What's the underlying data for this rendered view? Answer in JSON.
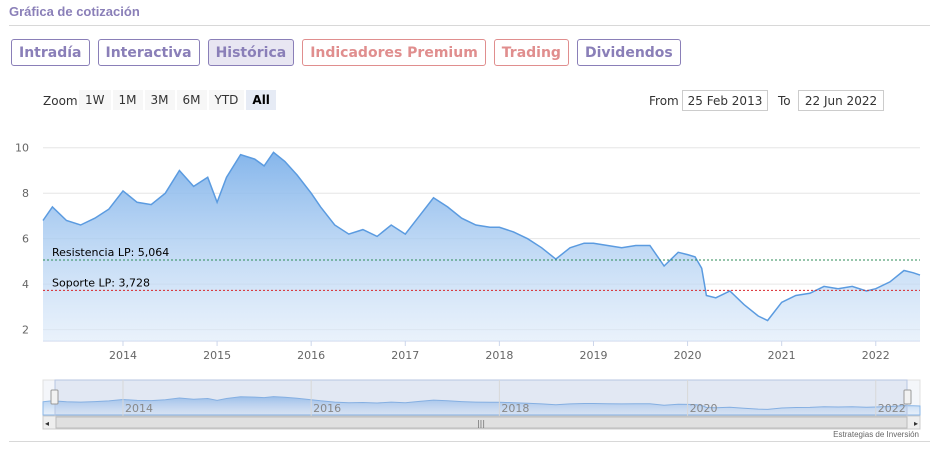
{
  "page_title": "Gráfica de cotización",
  "tabs": [
    {
      "label": "Intradía",
      "style": "normal"
    },
    {
      "label": "Interactiva",
      "style": "normal"
    },
    {
      "label": "Histórica",
      "style": "active"
    },
    {
      "label": "Indicadores Premium",
      "style": "premium"
    },
    {
      "label": "Trading",
      "style": "premium"
    },
    {
      "label": "Dividendos",
      "style": "normal"
    }
  ],
  "zoom": {
    "label": "Zoom",
    "buttons": [
      "1W",
      "1M",
      "3M",
      "6M",
      "YTD",
      "All"
    ],
    "selected": "All"
  },
  "range": {
    "from_label": "From",
    "from_value": "25 Feb 2013",
    "to_label": "To",
    "to_value": "22 Jun 2022"
  },
  "colors": {
    "accent": "#8a7fb8",
    "premium": "#e08e8e",
    "line": "#5b9be0",
    "area_top": "#7fb2ea",
    "resistance": "#2e8b57",
    "support": "#d9262b"
  },
  "credit": "Estrategias de Inversión",
  "chart_data": {
    "type": "area",
    "x_axis_ticks": [
      "2014",
      "2015",
      "2016",
      "2017",
      "2018",
      "2019",
      "2020",
      "2021",
      "2022"
    ],
    "y_axis_ticks": [
      "2",
      "4",
      "6",
      "8",
      "10"
    ],
    "ylim": [
      1.5,
      11
    ],
    "xlim": [
      2013.15,
      2022.47
    ],
    "grid": true,
    "lines": [
      {
        "label": "Resistencia LP: 5,064",
        "value": 5.064,
        "color": "#2e8b57"
      },
      {
        "label": "Soporte LP: 3,728",
        "value": 3.728,
        "color": "#d9262b"
      }
    ],
    "x": [
      2013.15,
      2013.25,
      2013.4,
      2013.55,
      2013.7,
      2013.85,
      2014.0,
      2014.15,
      2014.3,
      2014.45,
      2014.6,
      2014.75,
      2014.9,
      2015.0,
      2015.1,
      2015.25,
      2015.4,
      2015.5,
      2015.6,
      2015.72,
      2015.85,
      2016.0,
      2016.1,
      2016.25,
      2016.4,
      2016.55,
      2016.7,
      2016.85,
      2017.0,
      2017.15,
      2017.3,
      2017.45,
      2017.6,
      2017.75,
      2017.9,
      2018.0,
      2018.15,
      2018.3,
      2018.45,
      2018.6,
      2018.75,
      2018.9,
      2019.0,
      2019.15,
      2019.3,
      2019.45,
      2019.6,
      2019.75,
      2019.9,
      2020.0,
      2020.08,
      2020.15,
      2020.2,
      2020.3,
      2020.45,
      2020.6,
      2020.75,
      2020.85,
      2021.0,
      2021.15,
      2021.3,
      2021.45,
      2021.6,
      2021.75,
      2021.9,
      2022.0,
      2022.15,
      2022.3,
      2022.4,
      2022.47
    ],
    "values": [
      6.8,
      7.4,
      6.8,
      6.6,
      6.9,
      7.3,
      8.1,
      7.6,
      7.5,
      8.0,
      9.0,
      8.3,
      8.7,
      7.6,
      8.7,
      9.7,
      9.5,
      9.2,
      9.8,
      9.4,
      8.8,
      8.0,
      7.4,
      6.6,
      6.2,
      6.4,
      6.1,
      6.6,
      6.2,
      7.0,
      7.8,
      7.4,
      6.9,
      6.6,
      6.5,
      6.5,
      6.3,
      6.0,
      5.6,
      5.1,
      5.6,
      5.8,
      5.8,
      5.7,
      5.6,
      5.7,
      5.7,
      4.8,
      5.4,
      5.3,
      5.2,
      4.7,
      3.5,
      3.4,
      3.7,
      3.1,
      2.6,
      2.4,
      3.2,
      3.5,
      3.6,
      3.9,
      3.8,
      3.9,
      3.7,
      3.8,
      4.1,
      4.6,
      4.5,
      4.4
    ]
  }
}
